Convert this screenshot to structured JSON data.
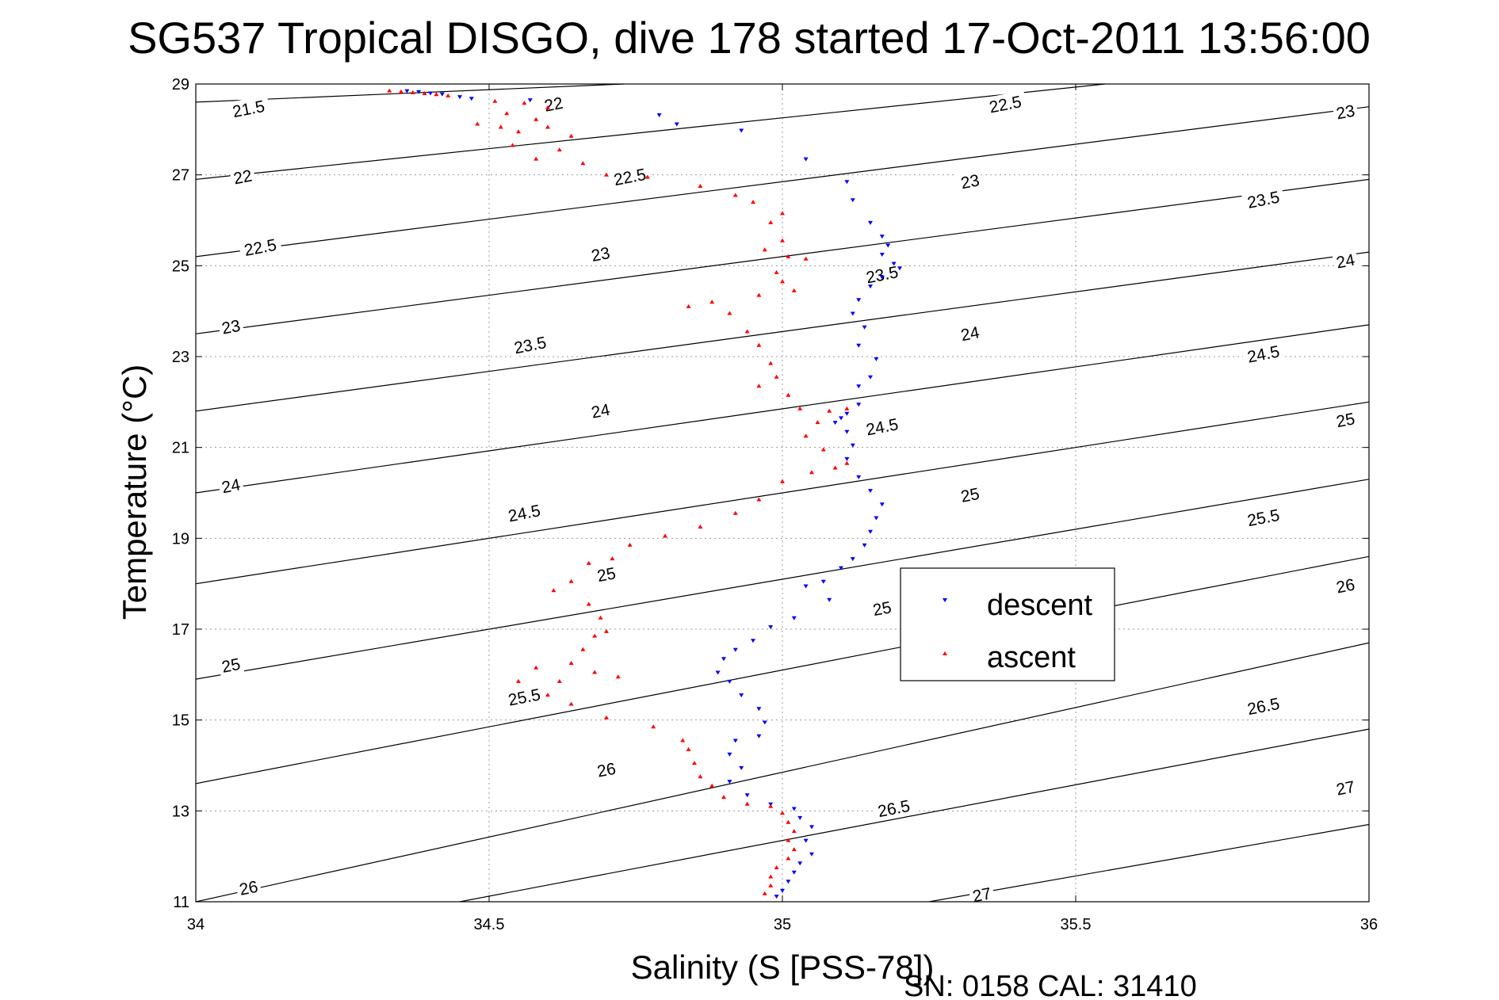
{
  "chart_data": {
    "type": "scatter",
    "title": "SG537 Tropical DISGO, dive 178 started 17-Oct-2011 13:56:00",
    "xlabel": "Salinity (S [PSS-78])",
    "ylabel": "Temperature (°C)",
    "xlim": [
      34,
      36
    ],
    "ylim": [
      11,
      29
    ],
    "xticks": [
      "34",
      "34.5",
      "35",
      "35.5",
      "36"
    ],
    "yticks": [
      "11",
      "13",
      "15",
      "17",
      "19",
      "21",
      "23",
      "25",
      "27",
      "29"
    ],
    "grid": true,
    "legend_position": "right",
    "footer": "SN: 0158  CAL: 31410",
    "colors": {
      "descent": "#0000ff",
      "ascent": "#ff0000",
      "contour": "#000000"
    },
    "contours": [
      {
        "level": "21.5",
        "points": [
          [
            34.0,
            28.6
          ],
          [
            34.73,
            29.0
          ]
        ]
      },
      {
        "level": "22",
        "points": [
          [
            34.0,
            26.9
          ],
          [
            35.55,
            29.0
          ]
        ]
      },
      {
        "level": "22.5",
        "points": [
          [
            34.0,
            25.2
          ],
          [
            36.0,
            28.5
          ]
        ]
      },
      {
        "level": "23",
        "points": [
          [
            34.0,
            23.5
          ],
          [
            36.0,
            26.9
          ]
        ]
      },
      {
        "level": "23.5",
        "points": [
          [
            34.0,
            21.8
          ],
          [
            36.0,
            25.3
          ]
        ]
      },
      {
        "level": "24",
        "points": [
          [
            34.0,
            20.0
          ],
          [
            36.0,
            23.7
          ]
        ]
      },
      {
        "level": "24.5",
        "points": [
          [
            34.0,
            18.0
          ],
          [
            36.0,
            22.0
          ]
        ]
      },
      {
        "level": "25",
        "points": [
          [
            34.0,
            15.9
          ],
          [
            36.0,
            20.3
          ]
        ]
      },
      {
        "level": "25.5",
        "points": [
          [
            34.0,
            13.6
          ],
          [
            36.0,
            18.6
          ]
        ]
      },
      {
        "level": "26",
        "points": [
          [
            34.0,
            11.0
          ],
          [
            36.0,
            16.7
          ]
        ]
      },
      {
        "level": "26.5",
        "points": [
          [
            34.45,
            11.0
          ],
          [
            36.0,
            14.8
          ]
        ]
      },
      {
        "level": "27",
        "points": [
          [
            35.25,
            11.0
          ],
          [
            36.0,
            12.7
          ]
        ]
      }
    ],
    "contour_labels": [
      {
        "text": "21.5",
        "x": 34.09,
        "y": 28.45
      },
      {
        "text": "22",
        "x": 34.61,
        "y": 28.55
      },
      {
        "text": "22.5",
        "x": 35.38,
        "y": 28.55
      },
      {
        "text": "23",
        "x": 35.96,
        "y": 28.38
      },
      {
        "text": "22",
        "x": 34.08,
        "y": 26.95
      },
      {
        "text": "22.5",
        "x": 34.74,
        "y": 26.95
      },
      {
        "text": "23",
        "x": 35.32,
        "y": 26.85
      },
      {
        "text": "23.5",
        "x": 35.82,
        "y": 26.45
      },
      {
        "text": "22.5",
        "x": 34.11,
        "y": 25.4
      },
      {
        "text": "23",
        "x": 34.69,
        "y": 25.25
      },
      {
        "text": "23.5",
        "x": 35.17,
        "y": 24.8
      },
      {
        "text": "24",
        "x": 35.96,
        "y": 25.1
      },
      {
        "text": "23",
        "x": 34.06,
        "y": 23.65
      },
      {
        "text": "23.5",
        "x": 34.57,
        "y": 23.25
      },
      {
        "text": "24",
        "x": 35.32,
        "y": 23.5
      },
      {
        "text": "24.5",
        "x": 35.82,
        "y": 23.05
      },
      {
        "text": "24",
        "x": 34.69,
        "y": 21.8
      },
      {
        "text": "24.5",
        "x": 35.17,
        "y": 21.45
      },
      {
        "text": "25",
        "x": 35.96,
        "y": 21.6
      },
      {
        "text": "24",
        "x": 34.06,
        "y": 20.15
      },
      {
        "text": "24.5",
        "x": 34.56,
        "y": 19.55
      },
      {
        "text": "25",
        "x": 35.32,
        "y": 19.95
      },
      {
        "text": "25.5",
        "x": 35.82,
        "y": 19.45
      },
      {
        "text": "25",
        "x": 34.7,
        "y": 18.2
      },
      {
        "text": "25",
        "x": 35.17,
        "y": 17.45
      },
      {
        "text": "26",
        "x": 35.96,
        "y": 17.95
      },
      {
        "text": "25",
        "x": 34.06,
        "y": 16.2
      },
      {
        "text": "25.5",
        "x": 34.56,
        "y": 15.5
      },
      {
        "text": "26.5",
        "x": 35.82,
        "y": 15.3
      },
      {
        "text": "26",
        "x": 34.7,
        "y": 13.9
      },
      {
        "text": "26.5",
        "x": 35.19,
        "y": 13.05
      },
      {
        "text": "27",
        "x": 35.96,
        "y": 13.5
      },
      {
        "text": "26",
        "x": 34.09,
        "y": 11.3
      },
      {
        "text": "27",
        "x": 35.34,
        "y": 11.15
      }
    ],
    "series": [
      {
        "name": "descent",
        "marker": "triangle-down",
        "color": "#0000ff",
        "points": [
          [
            34.36,
            28.85
          ],
          [
            34.38,
            28.83
          ],
          [
            34.4,
            28.8
          ],
          [
            34.42,
            28.78
          ],
          [
            34.45,
            28.72
          ],
          [
            34.47,
            28.68
          ],
          [
            34.57,
            28.65
          ],
          [
            34.79,
            28.32
          ],
          [
            34.82,
            28.12
          ],
          [
            34.93,
            27.98
          ],
          [
            35.04,
            27.35
          ],
          [
            35.11,
            26.85
          ],
          [
            35.12,
            26.45
          ],
          [
            35.15,
            25.95
          ],
          [
            35.17,
            25.65
          ],
          [
            35.18,
            25.45
          ],
          [
            35.17,
            25.25
          ],
          [
            35.19,
            25.05
          ],
          [
            35.2,
            24.95
          ],
          [
            35.17,
            24.75
          ],
          [
            35.15,
            24.55
          ],
          [
            35.13,
            24.25
          ],
          [
            35.12,
            23.95
          ],
          [
            35.14,
            23.65
          ],
          [
            35.13,
            23.25
          ],
          [
            35.16,
            22.95
          ],
          [
            35.15,
            22.55
          ],
          [
            35.13,
            22.35
          ],
          [
            35.13,
            21.95
          ],
          [
            35.11,
            21.75
          ],
          [
            35.1,
            21.65
          ],
          [
            35.09,
            21.55
          ],
          [
            35.11,
            21.35
          ],
          [
            35.12,
            21.05
          ],
          [
            35.11,
            20.75
          ],
          [
            35.13,
            20.35
          ],
          [
            35.15,
            20.05
          ],
          [
            35.17,
            19.75
          ],
          [
            35.16,
            19.45
          ],
          [
            35.15,
            19.15
          ],
          [
            35.14,
            18.85
          ],
          [
            35.12,
            18.55
          ],
          [
            35.1,
            18.35
          ],
          [
            35.07,
            18.05
          ],
          [
            35.04,
            17.95
          ],
          [
            35.08,
            17.65
          ],
          [
            35.02,
            17.25
          ],
          [
            34.98,
            17.05
          ],
          [
            34.95,
            16.75
          ],
          [
            34.92,
            16.55
          ],
          [
            34.9,
            16.35
          ],
          [
            34.89,
            16.05
          ],
          [
            34.91,
            15.85
          ],
          [
            34.93,
            15.55
          ],
          [
            34.96,
            15.25
          ],
          [
            34.97,
            14.95
          ],
          [
            34.96,
            14.65
          ],
          [
            34.92,
            14.55
          ],
          [
            34.91,
            14.25
          ],
          [
            34.93,
            13.95
          ],
          [
            34.91,
            13.65
          ],
          [
            34.94,
            13.35
          ],
          [
            34.98,
            13.15
          ],
          [
            35.02,
            13.05
          ],
          [
            35.03,
            12.85
          ],
          [
            35.05,
            12.65
          ],
          [
            35.04,
            12.35
          ],
          [
            35.05,
            12.05
          ],
          [
            35.03,
            11.85
          ],
          [
            35.02,
            11.65
          ],
          [
            35.01,
            11.45
          ],
          [
            35.0,
            11.25
          ],
          [
            34.99,
            11.12
          ]
        ]
      },
      {
        "name": "ascent",
        "marker": "triangle-up",
        "color": "#ff0000",
        "points": [
          [
            34.33,
            28.85
          ],
          [
            34.35,
            28.83
          ],
          [
            34.37,
            28.81
          ],
          [
            34.39,
            28.79
          ],
          [
            34.41,
            28.77
          ],
          [
            34.43,
            28.74
          ],
          [
            34.51,
            28.62
          ],
          [
            34.56,
            28.58
          ],
          [
            34.6,
            28.48
          ],
          [
            34.53,
            28.35
          ],
          [
            34.48,
            28.12
          ],
          [
            34.52,
            28.05
          ],
          [
            34.55,
            27.95
          ],
          [
            34.58,
            28.22
          ],
          [
            34.6,
            28.05
          ],
          [
            34.64,
            27.85
          ],
          [
            34.62,
            27.55
          ],
          [
            34.66,
            27.25
          ],
          [
            34.54,
            27.65
          ],
          [
            34.58,
            27.35
          ],
          [
            34.7,
            27.0
          ],
          [
            34.77,
            26.95
          ],
          [
            34.86,
            26.75
          ],
          [
            34.92,
            26.55
          ],
          [
            34.95,
            26.4
          ],
          [
            35.0,
            26.15
          ],
          [
            34.98,
            25.95
          ],
          [
            35.0,
            25.55
          ],
          [
            34.97,
            25.35
          ],
          [
            35.01,
            25.2
          ],
          [
            35.04,
            25.15
          ],
          [
            34.99,
            24.85
          ],
          [
            35.0,
            24.65
          ],
          [
            35.02,
            24.45
          ],
          [
            34.96,
            24.35
          ],
          [
            34.88,
            24.2
          ],
          [
            34.84,
            24.1
          ],
          [
            34.91,
            23.95
          ],
          [
            34.94,
            23.55
          ],
          [
            34.96,
            23.25
          ],
          [
            34.98,
            22.85
          ],
          [
            34.99,
            22.55
          ],
          [
            34.96,
            22.35
          ],
          [
            35.01,
            22.15
          ],
          [
            35.03,
            21.85
          ],
          [
            35.08,
            21.8
          ],
          [
            35.11,
            21.85
          ],
          [
            35.06,
            21.55
          ],
          [
            35.04,
            21.25
          ],
          [
            35.07,
            20.95
          ],
          [
            35.09,
            20.55
          ],
          [
            35.11,
            20.65
          ],
          [
            35.05,
            20.45
          ],
          [
            35.0,
            20.25
          ],
          [
            34.96,
            19.85
          ],
          [
            34.92,
            19.55
          ],
          [
            34.86,
            19.25
          ],
          [
            34.8,
            19.05
          ],
          [
            34.74,
            18.85
          ],
          [
            34.71,
            18.55
          ],
          [
            34.67,
            18.45
          ],
          [
            34.64,
            18.05
          ],
          [
            34.61,
            17.85
          ],
          [
            34.67,
            17.55
          ],
          [
            34.69,
            17.25
          ],
          [
            34.7,
            16.95
          ],
          [
            34.68,
            16.85
          ],
          [
            34.66,
            16.55
          ],
          [
            34.64,
            16.25
          ],
          [
            34.68,
            16.05
          ],
          [
            34.72,
            15.95
          ],
          [
            34.62,
            15.85
          ],
          [
            34.58,
            16.15
          ],
          [
            34.55,
            15.85
          ],
          [
            34.6,
            15.55
          ],
          [
            34.64,
            15.35
          ],
          [
            34.7,
            15.05
          ],
          [
            34.78,
            14.85
          ],
          [
            34.83,
            14.55
          ],
          [
            34.84,
            14.35
          ],
          [
            34.85,
            14.05
          ],
          [
            34.86,
            13.75
          ],
          [
            34.88,
            13.55
          ],
          [
            34.9,
            13.3
          ],
          [
            34.94,
            13.15
          ],
          [
            34.98,
            13.1
          ],
          [
            35.0,
            12.95
          ],
          [
            35.01,
            12.75
          ],
          [
            35.02,
            12.55
          ],
          [
            35.01,
            12.35
          ],
          [
            35.02,
            12.15
          ],
          [
            35.01,
            11.95
          ],
          [
            34.99,
            11.75
          ],
          [
            34.98,
            11.55
          ],
          [
            34.98,
            11.35
          ],
          [
            34.97,
            11.18
          ]
        ]
      }
    ],
    "legend": [
      {
        "label": "descent",
        "color": "#0000ff",
        "marker": "triangle-down"
      },
      {
        "label": "ascent",
        "color": "#ff0000",
        "marker": "triangle-up"
      }
    ]
  }
}
